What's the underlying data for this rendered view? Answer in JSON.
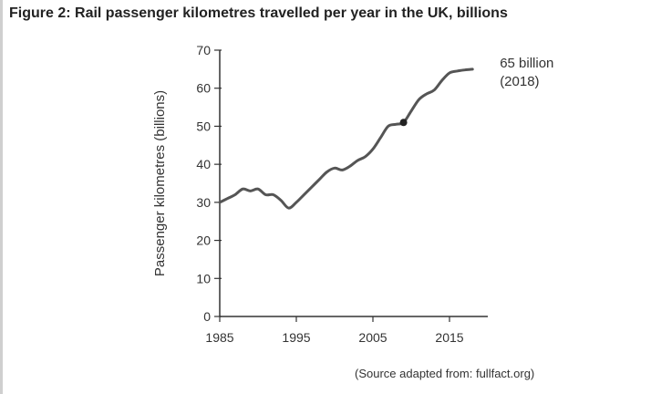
{
  "figure": {
    "title": "Figure 2: Rail passenger kilometres travelled per year in the UK, billions",
    "source": "(Source adapted from: fullfact.org)"
  },
  "chart_data": {
    "type": "line",
    "title": "Figure 2: Rail passenger kilometres travelled per year in the UK, billions",
    "xlabel": "",
    "ylabel": "Passenger kilometres (billions)",
    "xlim": [
      1985,
      2020
    ],
    "ylim": [
      0,
      70
    ],
    "xticks": [
      1985,
      1995,
      2005,
      2015
    ],
    "yticks": [
      0,
      10,
      20,
      30,
      40,
      50,
      60,
      70
    ],
    "grid": false,
    "series": [
      {
        "values_x": [
          1985,
          1986,
          1987,
          1988,
          1989,
          1990,
          1991,
          1992,
          1993,
          1994,
          1995,
          1996,
          1997,
          1998,
          1999,
          2000,
          2001,
          2002,
          2003,
          2004,
          2005,
          2006,
          2007,
          2008,
          2009,
          2010,
          2011,
          2012,
          2013,
          2014,
          2015,
          2016,
          2017,
          2018
        ],
        "values_y": [
          30,
          31,
          32,
          33.5,
          33,
          33.5,
          32,
          32,
          30.5,
          28.5,
          30,
          32,
          34,
          36,
          38,
          39,
          38.5,
          39.5,
          41,
          42,
          44,
          47,
          50,
          50.5,
          51,
          54,
          57,
          58.5,
          59.5,
          62,
          64,
          64.5,
          64.8,
          65
        ],
        "color": "#555555"
      }
    ],
    "highlight": {
      "x": 2009,
      "y": 51
    },
    "annotation": {
      "line1": "65 billion",
      "line2": "(2018)",
      "x": 2018,
      "y": 65
    }
  }
}
